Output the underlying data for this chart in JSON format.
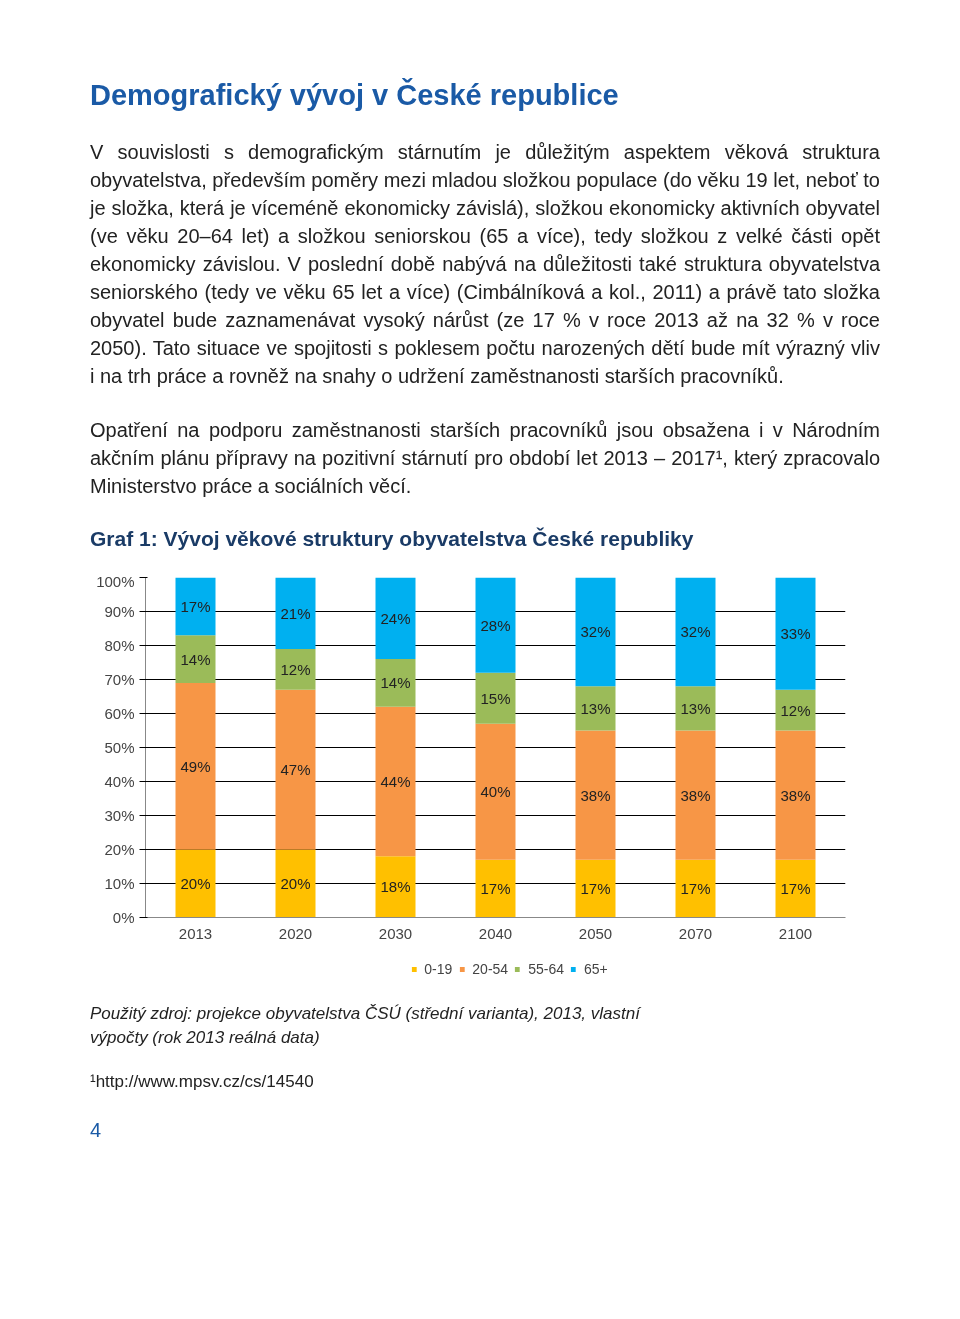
{
  "chart_data": {
    "type": "bar",
    "title": "Graf 1: Vývoj věkové struktury obyvatelstva České republiky",
    "categories": [
      "2013",
      "2020",
      "2030",
      "2040",
      "2050",
      "2070",
      "2100"
    ],
    "stacked": true,
    "series": [
      {
        "name": "0-19",
        "color": "#ffc000",
        "values": [
          20,
          20,
          18,
          17,
          17,
          17,
          17
        ],
        "value_labels": [
          "20%",
          "20%",
          "18%",
          "17%",
          "17%",
          "17%",
          "17%"
        ]
      },
      {
        "name": "20-54",
        "color": "#f79646",
        "values": [
          49,
          47,
          44,
          40,
          38,
          38,
          38
        ],
        "value_labels": [
          "49%",
          "47%",
          "44%",
          "40%",
          "38%",
          "38%",
          "38%"
        ]
      },
      {
        "name": "55-64",
        "color": "#9bbb59",
        "values": [
          14,
          12,
          14,
          15,
          13,
          13,
          12
        ],
        "value_labels": [
          "14%",
          "12%",
          "14%",
          "15%",
          "13%",
          "13%",
          "12%"
        ]
      },
      {
        "name": "65+",
        "color": "#00b0f0",
        "values": [
          17,
          21,
          24,
          28,
          32,
          32,
          33
        ],
        "value_labels": [
          "17%",
          "21%",
          "24%",
          "28%",
          "32%",
          "32%",
          "33%"
        ]
      }
    ],
    "ylim": [
      0,
      100
    ],
    "yticks": [
      {
        "value": 0,
        "label": "0%"
      },
      {
        "value": 10,
        "label": "10%"
      },
      {
        "value": 20,
        "label": "20%"
      },
      {
        "value": 30,
        "label": "30%"
      },
      {
        "value": 40,
        "label": "40%"
      },
      {
        "value": 50,
        "label": "50%"
      },
      {
        "value": 60,
        "label": "60%"
      },
      {
        "value": 70,
        "label": "70%"
      },
      {
        "value": 80,
        "label": "80%"
      },
      {
        "value": 90,
        "label": "90%"
      },
      {
        "value": 100,
        "label": "100%"
      }
    ],
    "grid": "y",
    "legend": "bottom",
    "annotations": [
      "Demografický vývoj v České republice",
      "V souvislosti s demografickým stárnutím je důležitým aspektem věková struktura obyvatelstva, především poměry mezi mladou složkou populace (do věku 19 let, neboť to je složka, která je víceméně ekonomicky závislá), složkou ekonomicky aktivních obyvatel (ve věku 20–64 let) a složkou seniorskou (65 a více), tedy složkou z velké části opět ekonomicky závislou. V poslední době nabývá na důležitosti také struktura obyvatelstva seniorského (tedy ve věku 65 let a více) (Cimbálníková a kol., 2011) a právě tato složka obyvatel bude zaznamenávat vysoký nárůst (ze 17 % v roce 2013 až na 32 % v roce 2050). Tato situace ve spojitosti s poklesem počtu narozených dětí bude mít výrazný vliv i na trh práce a rovněž na snahy o udržení zaměstnanosti starších pracovníků.",
      "Opatření na podporu zaměstnanosti starších pracovníků jsou obsažena i v Národním akčním plánu přípravy na pozitivní stárnutí pro období let 2013 – 2017¹, který zpracovalo Ministerstvo práce a sociálních věcí.",
      "Použitý zdroj: projekce obyvatelstva ČSÚ (střední varianta), 2013, vlastní výpočty (rok 2013 reálná data)",
      "¹http://www.mpsv.cz/cs/14540",
      "4"
    ]
  }
}
